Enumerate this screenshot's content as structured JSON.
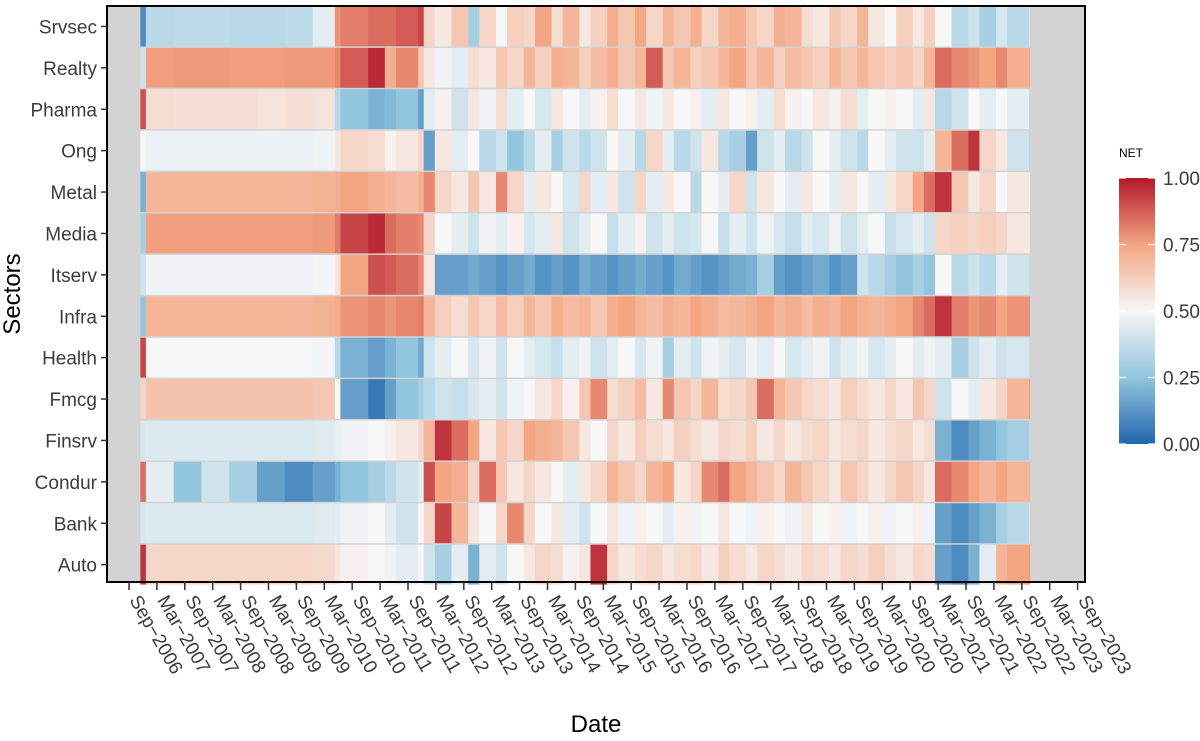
{
  "chart_data": {
    "type": "heatmap",
    "title": "",
    "xlabel": "Date",
    "ylabel": "Sectors",
    "legend_title": "NET",
    "legend_ticks": [
      "1.00",
      "0.75",
      "0.50",
      "0.25",
      "0.00"
    ],
    "legend_tick_values": [
      1.0,
      0.75,
      0.5,
      0.25,
      0.0
    ],
    "value_range": [
      0,
      1
    ],
    "legend_position": "right",
    "colorscale": {
      "low": "#2166ac",
      "lowmid": "#92c5de",
      "mid": "#f7f7f7",
      "highmid": "#f4a582",
      "high": "#b2182b"
    },
    "x_tick_labels": [
      "Sep−2006",
      "Mar−2007",
      "Sep−2007",
      "Mar−2008",
      "Sep−2008",
      "Mar−2009",
      "Sep−2009",
      "Mar−2010",
      "Sep−2010",
      "Mar−2011",
      "Sep−2011",
      "Mar−2012",
      "Sep−2012",
      "Mar−2013",
      "Sep−2013",
      "Mar−2014",
      "Sep−2014",
      "Mar−2015",
      "Sep−2015",
      "Mar−2016",
      "Sep−2016",
      "Mar−2017",
      "Sep−2017",
      "Mar−2018",
      "Sep−2018",
      "Mar−2019",
      "Sep−2019",
      "Mar−2020",
      "Sep−2020",
      "Mar−2021",
      "Sep−2021",
      "Mar−2022",
      "Sep−2022",
      "Mar−2023",
      "Sep−2023"
    ],
    "x_range": [
      2006.3,
      2023.9
    ],
    "data_range": [
      2006.9,
      2022.9
    ],
    "time_breaks": [
      2006.9,
      2007.0,
      2007.5,
      2008.0,
      2008.5,
      2009.0,
      2009.5,
      2010.0,
      2010.4,
      2010.5,
      2011.0,
      2011.3,
      2011.5,
      2011.9,
      2012.0,
      2012.2,
      2012.5,
      2012.8,
      2013.0,
      2013.3,
      2013.5,
      2013.8,
      2014.0,
      2014.3,
      2014.5,
      2014.8,
      2015.0,
      2015.3,
      2015.5,
      2015.8,
      2016.0,
      2016.3,
      2016.5,
      2016.8,
      2017.0,
      2017.3,
      2017.5,
      2017.8,
      2018.0,
      2018.3,
      2018.5,
      2018.8,
      2019.0,
      2019.3,
      2019.5,
      2019.8,
      2020.0,
      2020.3,
      2020.5,
      2020.8,
      2021.0,
      2021.2,
      2021.5,
      2021.8,
      2022.0,
      2022.3,
      2022.5,
      2022.9
    ],
    "sectors": [
      {
        "name": "Srvsec",
        "values": [
          0.1,
          0.35,
          0.36,
          0.36,
          0.35,
          0.35,
          0.36,
          0.45,
          0.78,
          0.82,
          0.85,
          0.85,
          0.88,
          0.92,
          0.6,
          0.55,
          0.65,
          0.3,
          0.6,
          0.5,
          0.62,
          0.6,
          0.75,
          0.58,
          0.7,
          0.55,
          0.62,
          0.72,
          0.65,
          0.75,
          0.6,
          0.7,
          0.65,
          0.72,
          0.6,
          0.7,
          0.72,
          0.65,
          0.6,
          0.72,
          0.7,
          0.58,
          0.55,
          0.65,
          0.6,
          0.7,
          0.55,
          0.5,
          0.62,
          0.55,
          0.62,
          0.5,
          0.35,
          0.4,
          0.3,
          0.42,
          0.35,
          0.45
        ]
      },
      {
        "name": "Realty",
        "values": [
          0.4,
          0.76,
          0.77,
          0.77,
          0.76,
          0.76,
          0.77,
          0.77,
          0.8,
          0.88,
          0.97,
          0.72,
          0.8,
          0.65,
          0.55,
          0.48,
          0.45,
          0.58,
          0.55,
          0.65,
          0.6,
          0.7,
          0.62,
          0.72,
          0.7,
          0.62,
          0.68,
          0.72,
          0.65,
          0.7,
          0.88,
          0.65,
          0.7,
          0.62,
          0.65,
          0.7,
          0.75,
          0.65,
          0.7,
          0.62,
          0.68,
          0.65,
          0.62,
          0.7,
          0.65,
          0.7,
          0.65,
          0.62,
          0.65,
          0.6,
          0.7,
          0.85,
          0.8,
          0.78,
          0.75,
          0.8,
          0.72,
          0.75
        ]
      },
      {
        "name": "Pharma",
        "values": [
          0.9,
          0.58,
          0.57,
          0.57,
          0.57,
          0.56,
          0.57,
          0.56,
          0.35,
          0.25,
          0.2,
          0.22,
          0.25,
          0.15,
          0.45,
          0.52,
          0.4,
          0.55,
          0.48,
          0.58,
          0.45,
          0.5,
          0.42,
          0.55,
          0.5,
          0.45,
          0.52,
          0.58,
          0.5,
          0.55,
          0.48,
          0.55,
          0.5,
          0.52,
          0.45,
          0.55,
          0.5,
          0.52,
          0.45,
          0.58,
          0.52,
          0.5,
          0.55,
          0.52,
          0.58,
          0.45,
          0.5,
          0.52,
          0.5,
          0.45,
          0.55,
          0.35,
          0.4,
          0.5,
          0.45,
          0.5,
          0.45,
          0.3
        ]
      },
      {
        "name": "Ong",
        "values": [
          0.5,
          0.47,
          0.47,
          0.47,
          0.47,
          0.47,
          0.47,
          0.48,
          0.55,
          0.6,
          0.58,
          0.52,
          0.55,
          0.6,
          0.15,
          0.55,
          0.45,
          0.5,
          0.35,
          0.4,
          0.25,
          0.35,
          0.45,
          0.3,
          0.4,
          0.35,
          0.4,
          0.5,
          0.45,
          0.35,
          0.6,
          0.45,
          0.35,
          0.4,
          0.55,
          0.35,
          0.3,
          0.15,
          0.4,
          0.45,
          0.35,
          0.4,
          0.5,
          0.45,
          0.4,
          0.35,
          0.5,
          0.45,
          0.4,
          0.4,
          0.45,
          0.7,
          0.85,
          0.95,
          0.6,
          0.55,
          0.4,
          0.3
        ]
      },
      {
        "name": "Metal",
        "values": [
          0.2,
          0.7,
          0.7,
          0.7,
          0.7,
          0.7,
          0.7,
          0.71,
          0.72,
          0.75,
          0.72,
          0.7,
          0.68,
          0.72,
          0.8,
          0.6,
          0.55,
          0.65,
          0.55,
          0.8,
          0.6,
          0.45,
          0.55,
          0.5,
          0.42,
          0.6,
          0.45,
          0.55,
          0.4,
          0.6,
          0.45,
          0.55,
          0.5,
          0.35,
          0.5,
          0.45,
          0.6,
          0.4,
          0.55,
          0.5,
          0.45,
          0.55,
          0.5,
          0.45,
          0.55,
          0.5,
          0.45,
          0.55,
          0.6,
          0.75,
          0.85,
          0.95,
          0.65,
          0.55,
          0.6,
          0.5,
          0.55,
          0.5
        ]
      },
      {
        "name": "Media",
        "values": [
          0.3,
          0.76,
          0.76,
          0.76,
          0.76,
          0.76,
          0.76,
          0.77,
          0.82,
          0.92,
          0.97,
          0.85,
          0.82,
          0.8,
          0.6,
          0.5,
          0.45,
          0.4,
          0.48,
          0.45,
          0.52,
          0.42,
          0.45,
          0.55,
          0.4,
          0.45,
          0.5,
          0.38,
          0.45,
          0.52,
          0.4,
          0.45,
          0.4,
          0.42,
          0.5,
          0.38,
          0.45,
          0.4,
          0.48,
          0.42,
          0.38,
          0.45,
          0.42,
          0.48,
          0.4,
          0.45,
          0.5,
          0.38,
          0.42,
          0.45,
          0.4,
          0.6,
          0.62,
          0.6,
          0.62,
          0.6,
          0.55,
          0.58
        ]
      },
      {
        "name": "Itserv",
        "values": [
          0.4,
          0.48,
          0.48,
          0.48,
          0.48,
          0.48,
          0.48,
          0.49,
          0.55,
          0.75,
          0.9,
          0.88,
          0.85,
          0.8,
          0.55,
          0.15,
          0.15,
          0.18,
          0.15,
          0.12,
          0.15,
          0.18,
          0.12,
          0.15,
          0.12,
          0.18,
          0.15,
          0.12,
          0.15,
          0.18,
          0.15,
          0.12,
          0.18,
          0.15,
          0.12,
          0.15,
          0.18,
          0.2,
          0.3,
          0.15,
          0.12,
          0.15,
          0.18,
          0.12,
          0.15,
          0.4,
          0.35,
          0.3,
          0.25,
          0.3,
          0.25,
          0.5,
          0.35,
          0.4,
          0.35,
          0.45,
          0.4,
          0.35
        ]
      },
      {
        "name": "Infra",
        "values": [
          0.25,
          0.7,
          0.7,
          0.7,
          0.7,
          0.7,
          0.7,
          0.71,
          0.73,
          0.78,
          0.8,
          0.78,
          0.8,
          0.82,
          0.7,
          0.62,
          0.58,
          0.65,
          0.6,
          0.68,
          0.62,
          0.7,
          0.65,
          0.72,
          0.68,
          0.7,
          0.65,
          0.72,
          0.75,
          0.7,
          0.68,
          0.72,
          0.7,
          0.75,
          0.72,
          0.68,
          0.7,
          0.72,
          0.75,
          0.7,
          0.72,
          0.68,
          0.72,
          0.7,
          0.75,
          0.72,
          0.7,
          0.72,
          0.75,
          0.8,
          0.85,
          0.95,
          0.82,
          0.78,
          0.8,
          0.75,
          0.78,
          0.8
        ]
      },
      {
        "name": "Health",
        "values": [
          0.92,
          0.5,
          0.5,
          0.5,
          0.5,
          0.5,
          0.5,
          0.49,
          0.35,
          0.2,
          0.15,
          0.2,
          0.25,
          0.18,
          0.4,
          0.45,
          0.5,
          0.42,
          0.48,
          0.4,
          0.5,
          0.45,
          0.42,
          0.38,
          0.45,
          0.48,
          0.4,
          0.45,
          0.5,
          0.42,
          0.48,
          0.3,
          0.45,
          0.4,
          0.48,
          0.45,
          0.42,
          0.48,
          0.45,
          0.5,
          0.42,
          0.45,
          0.48,
          0.4,
          0.45,
          0.48,
          0.42,
          0.45,
          0.5,
          0.45,
          0.48,
          0.45,
          0.3,
          0.4,
          0.45,
          0.4,
          0.42,
          0.35
        ]
      },
      {
        "name": "Fmcg",
        "values": [
          0.6,
          0.66,
          0.66,
          0.66,
          0.66,
          0.66,
          0.66,
          0.65,
          0.5,
          0.15,
          0.05,
          0.15,
          0.25,
          0.3,
          0.35,
          0.4,
          0.38,
          0.42,
          0.45,
          0.4,
          0.48,
          0.5,
          0.55,
          0.6,
          0.52,
          0.65,
          0.8,
          0.58,
          0.62,
          0.68,
          0.55,
          0.8,
          0.65,
          0.6,
          0.7,
          0.58,
          0.6,
          0.65,
          0.85,
          0.7,
          0.65,
          0.6,
          0.58,
          0.55,
          0.62,
          0.58,
          0.55,
          0.6,
          0.55,
          0.65,
          0.6,
          0.4,
          0.5,
          0.45,
          0.55,
          0.6,
          0.7,
          0.8
        ]
      },
      {
        "name": "Finsrv",
        "values": [
          0.42,
          0.43,
          0.43,
          0.43,
          0.43,
          0.43,
          0.43,
          0.44,
          0.46,
          0.48,
          0.5,
          0.52,
          0.55,
          0.6,
          0.7,
          0.95,
          0.85,
          0.75,
          0.55,
          0.65,
          0.6,
          0.75,
          0.72,
          0.7,
          0.65,
          0.55,
          0.5,
          0.6,
          0.55,
          0.62,
          0.58,
          0.55,
          0.62,
          0.58,
          0.55,
          0.6,
          0.58,
          0.62,
          0.55,
          0.6,
          0.55,
          0.58,
          0.6,
          0.55,
          0.58,
          0.6,
          0.55,
          0.58,
          0.6,
          0.55,
          0.58,
          0.2,
          0.1,
          0.15,
          0.2,
          0.25,
          0.3,
          0.4
        ]
      },
      {
        "name": "Condur",
        "values": [
          0.85,
          0.45,
          0.25,
          0.4,
          0.3,
          0.15,
          0.1,
          0.15,
          0.2,
          0.25,
          0.3,
          0.35,
          0.4,
          0.45,
          0.9,
          0.75,
          0.72,
          0.6,
          0.85,
          0.65,
          0.55,
          0.6,
          0.55,
          0.5,
          0.45,
          0.55,
          0.6,
          0.7,
          0.65,
          0.6,
          0.7,
          0.75,
          0.55,
          0.6,
          0.8,
          0.85,
          0.75,
          0.7,
          0.65,
          0.6,
          0.7,
          0.65,
          0.6,
          0.55,
          0.65,
          0.6,
          0.55,
          0.6,
          0.65,
          0.6,
          0.55,
          0.85,
          0.8,
          0.75,
          0.7,
          0.75,
          0.7,
          0.72
        ]
      },
      {
        "name": "Bank",
        "values": [
          0.42,
          0.43,
          0.43,
          0.43,
          0.43,
          0.43,
          0.43,
          0.44,
          0.45,
          0.48,
          0.5,
          0.45,
          0.4,
          0.5,
          0.6,
          0.92,
          0.7,
          0.55,
          0.5,
          0.6,
          0.8,
          0.6,
          0.5,
          0.55,
          0.45,
          0.4,
          0.5,
          0.55,
          0.48,
          0.52,
          0.5,
          0.45,
          0.52,
          0.48,
          0.5,
          0.55,
          0.5,
          0.48,
          0.52,
          0.5,
          0.48,
          0.55,
          0.5,
          0.52,
          0.48,
          0.5,
          0.52,
          0.48,
          0.5,
          0.52,
          0.48,
          0.15,
          0.1,
          0.15,
          0.2,
          0.3,
          0.35,
          0.45
        ]
      },
      {
        "name": "Auto",
        "values": [
          0.95,
          0.6,
          0.6,
          0.6,
          0.6,
          0.6,
          0.6,
          0.59,
          0.55,
          0.52,
          0.5,
          0.48,
          0.45,
          0.5,
          0.4,
          0.3,
          0.45,
          0.2,
          0.45,
          0.4,
          0.5,
          0.55,
          0.6,
          0.58,
          0.52,
          0.55,
          0.95,
          0.6,
          0.55,
          0.58,
          0.6,
          0.55,
          0.58,
          0.6,
          0.55,
          0.62,
          0.58,
          0.55,
          0.6,
          0.58,
          0.55,
          0.6,
          0.58,
          0.55,
          0.6,
          0.58,
          0.62,
          0.58,
          0.55,
          0.6,
          0.58,
          0.15,
          0.1,
          0.2,
          0.45,
          0.7,
          0.75,
          0.8
        ]
      }
    ]
  }
}
